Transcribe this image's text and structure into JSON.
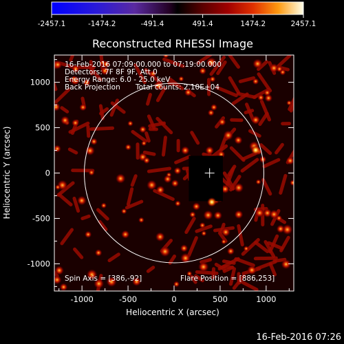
{
  "chart_data": {
    "type": "heatmap",
    "title": "Reconstructed RHESSI Image",
    "xlabel": "Heliocentric X (arcsec)",
    "ylabel": "Heliocentric Y (arcsec)",
    "xlim": [
      -1300,
      1300
    ],
    "ylim": [
      -1300,
      1300
    ],
    "xticks": [
      -1000,
      -500,
      0,
      500,
      1000
    ],
    "yticks": [
      -1000,
      -500,
      0,
      500,
      1000
    ],
    "colorbar": {
      "colormap": "hot-blue diverging",
      "range": [
        -2457.1,
        2457.1
      ],
      "tick_values": [
        -2457.1,
        -1474.2,
        -491.4,
        491.4,
        1474.2,
        2457.1
      ],
      "tick_labels": [
        "-2457.1",
        "-1474.2",
        "-491.4",
        "491.4",
        "1474.2",
        "2457.1"
      ]
    },
    "annotations": {
      "time_range": "16-Feb-2016 07:09:00.000 to 07:19:00.000",
      "detectors": "Detectors: 7F 8F 9F, Att 0",
      "energy_range": "Energy Range: 6.0 - 25.0 keV",
      "method": "Back Projection",
      "total_counts": "Total counts: 2.10E+04",
      "spin_axis": "Spin Axis = [386,-92]",
      "flare_position": "Flare Position = [886,253]"
    },
    "solar_limb": {
      "center": [
        0,
        0
      ],
      "radius_arcsec": 975
    },
    "map_center_marker": [
      386,
      0
    ],
    "dark_region": {
      "x": [
        160,
        530
      ],
      "y": [
        -310,
        190
      ]
    },
    "bright_sources": [
      {
        "x": 886,
        "y": 253
      },
      {
        "x": 410,
        "y": -320
      }
    ]
  },
  "footer": {
    "timestamp": "16-Feb-2016 07:26"
  }
}
